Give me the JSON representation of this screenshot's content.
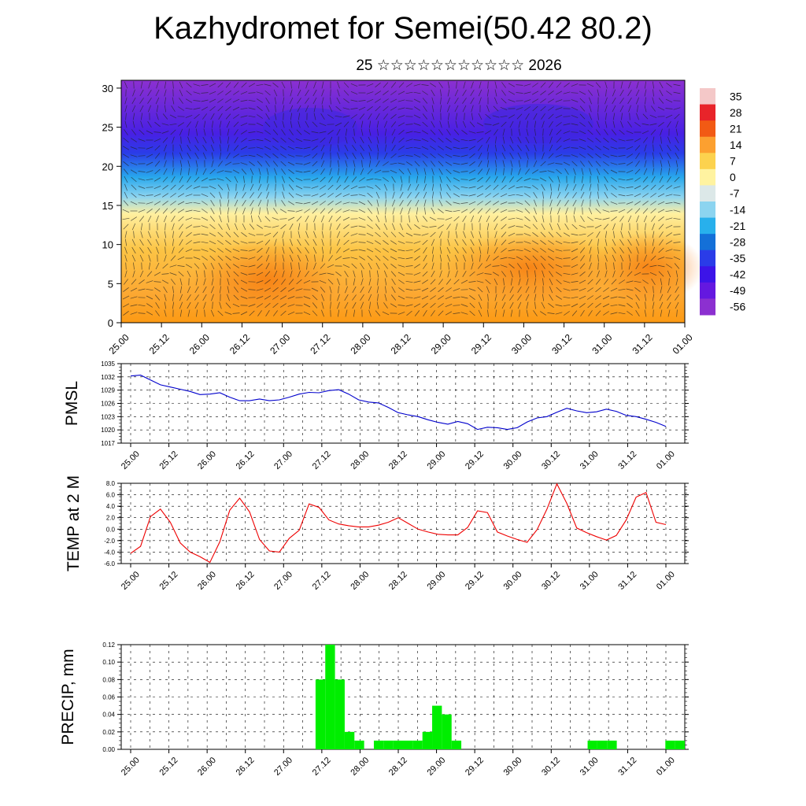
{
  "title": "Kazhydromet for Semei(50.42 80.2)",
  "subtitle": "25 ☆☆☆☆☆☆☆☆☆☆☆ 2026",
  "chart_data": [
    {
      "type": "heatmap",
      "name": "vertical cross-section",
      "x_ticks": [
        "25.00",
        "25.12",
        "26.00",
        "26.12",
        "27.00",
        "27.12",
        "28.00",
        "28.12",
        "29.00",
        "29.12",
        "30.00",
        "30.12",
        "31.00",
        "31.12",
        "01.00"
      ],
      "y_ticks": [
        0,
        5,
        10,
        15,
        20,
        25,
        30
      ],
      "ylim": [
        0,
        31
      ],
      "colorbar": {
        "labels": [
          "35",
          "28",
          "21",
          "14",
          "7",
          "0",
          "-7",
          "-14",
          "-21",
          "-28",
          "-35",
          "-42",
          "-49",
          "-56"
        ],
        "colors": [
          "#f4c8c8",
          "#e8242a",
          "#f25a14",
          "#fca030",
          "#fcd24e",
          "#fff3a0",
          "#dce8e8",
          "#8cd4f0",
          "#28b0ec",
          "#1470d8",
          "#2a3ce8",
          "#3c14e8",
          "#6418e0",
          "#8c30d0"
        ]
      }
    },
    {
      "type": "line",
      "ylabel": "PMSL",
      "x_ticks": [
        "25.00",
        "25.12",
        "26.00",
        "26.12",
        "27.00",
        "27.12",
        "28.00",
        "28.12",
        "29.00",
        "29.12",
        "30.00",
        "30.12",
        "31.00",
        "31.12",
        "01.00"
      ],
      "y_ticks": [
        1017,
        1020,
        1023,
        1026,
        1029,
        1032,
        1035
      ],
      "ylim": [
        1017,
        1035
      ],
      "series": [
        {
          "color": "#0000cc",
          "values": [
            1032.2,
            1032.4,
            1031.3,
            1030.2,
            1029.7,
            1029.2,
            1028.7,
            1028.0,
            1028.1,
            1028.4,
            1027.4,
            1026.6,
            1026.6,
            1027.0,
            1026.6,
            1026.8,
            1027.4,
            1028.1,
            1028.5,
            1028.4,
            1028.9,
            1029.1,
            1028.1,
            1026.8,
            1026.3,
            1026.1,
            1025.1,
            1023.9,
            1023.4,
            1023.0,
            1022.3,
            1021.7,
            1021.3,
            1021.9,
            1021.4,
            1020.1,
            1020.6,
            1020.5,
            1020.1,
            1020.5,
            1021.8,
            1022.7,
            1023.0,
            1024.0,
            1024.9,
            1024.3,
            1023.9,
            1024.1,
            1024.7,
            1024.2,
            1023.3,
            1023.0,
            1022.4,
            1021.7,
            1020.8
          ]
        }
      ]
    },
    {
      "type": "line",
      "ylabel": "TEMP at 2 M",
      "x_ticks": [
        "25.00",
        "25.12",
        "26.00",
        "26.12",
        "27.00",
        "27.12",
        "28.00",
        "28.12",
        "29.00",
        "29.12",
        "30.00",
        "30.12",
        "31.00",
        "31.12",
        "01.00"
      ],
      "y_ticks": [
        "-6.0",
        "-4.0",
        "-2.0",
        "0.0",
        "2.0",
        "4.0",
        "6.0",
        "8.0"
      ],
      "ylim": [
        -6,
        8
      ],
      "series": [
        {
          "color": "#ee0000",
          "values": [
            -4.2,
            -3.0,
            2.2,
            3.5,
            1.2,
            -2.4,
            -4.0,
            -4.8,
            -5.8,
            -2.2,
            3.3,
            5.4,
            3.0,
            -1.8,
            -3.8,
            -4.0,
            -1.6,
            -0.2,
            4.4,
            3.8,
            1.6,
            0.9,
            0.6,
            0.4,
            0.4,
            0.7,
            1.2,
            2.0,
            1.0,
            0.0,
            -0.5,
            -0.9,
            -1.0,
            -1.0,
            0.3,
            3.2,
            2.9,
            -0.5,
            -1.2,
            -1.8,
            -2.3,
            -0.1,
            3.5,
            7.9,
            4.5,
            0.2,
            -0.6,
            -1.3,
            -1.9,
            -1.1,
            1.6,
            5.6,
            6.4,
            1.2,
            0.8
          ]
        }
      ]
    },
    {
      "type": "bar",
      "ylabel": "PRECIP, mm",
      "x_ticks": [
        "25.00",
        "25.12",
        "26.00",
        "26.12",
        "27.00",
        "27.12",
        "28.00",
        "28.12",
        "29.00",
        "29.12",
        "30.00",
        "30.12",
        "31.00",
        "31.12",
        "01.00"
      ],
      "y_ticks": [
        "0.00",
        "0.02",
        "0.04",
        "0.06",
        "0.08",
        "0.10",
        "0.12"
      ],
      "ylim": [
        0,
        0.12
      ],
      "color": "#00ee00",
      "values": [
        0,
        0,
        0,
        0,
        0,
        0,
        0,
        0,
        0,
        0,
        0,
        0,
        0,
        0,
        0,
        0,
        0,
        0,
        0,
        0,
        0.08,
        0.12,
        0.08,
        0.02,
        0.01,
        0,
        0.01,
        0.01,
        0.01,
        0.01,
        0.01,
        0.02,
        0.05,
        0.04,
        0.01,
        0,
        0,
        0,
        0,
        0,
        0,
        0,
        0,
        0,
        0,
        0,
        0,
        0,
        0.01,
        0.01,
        0.01,
        0,
        0,
        0,
        0,
        0,
        0.01,
        0.01
      ]
    }
  ]
}
